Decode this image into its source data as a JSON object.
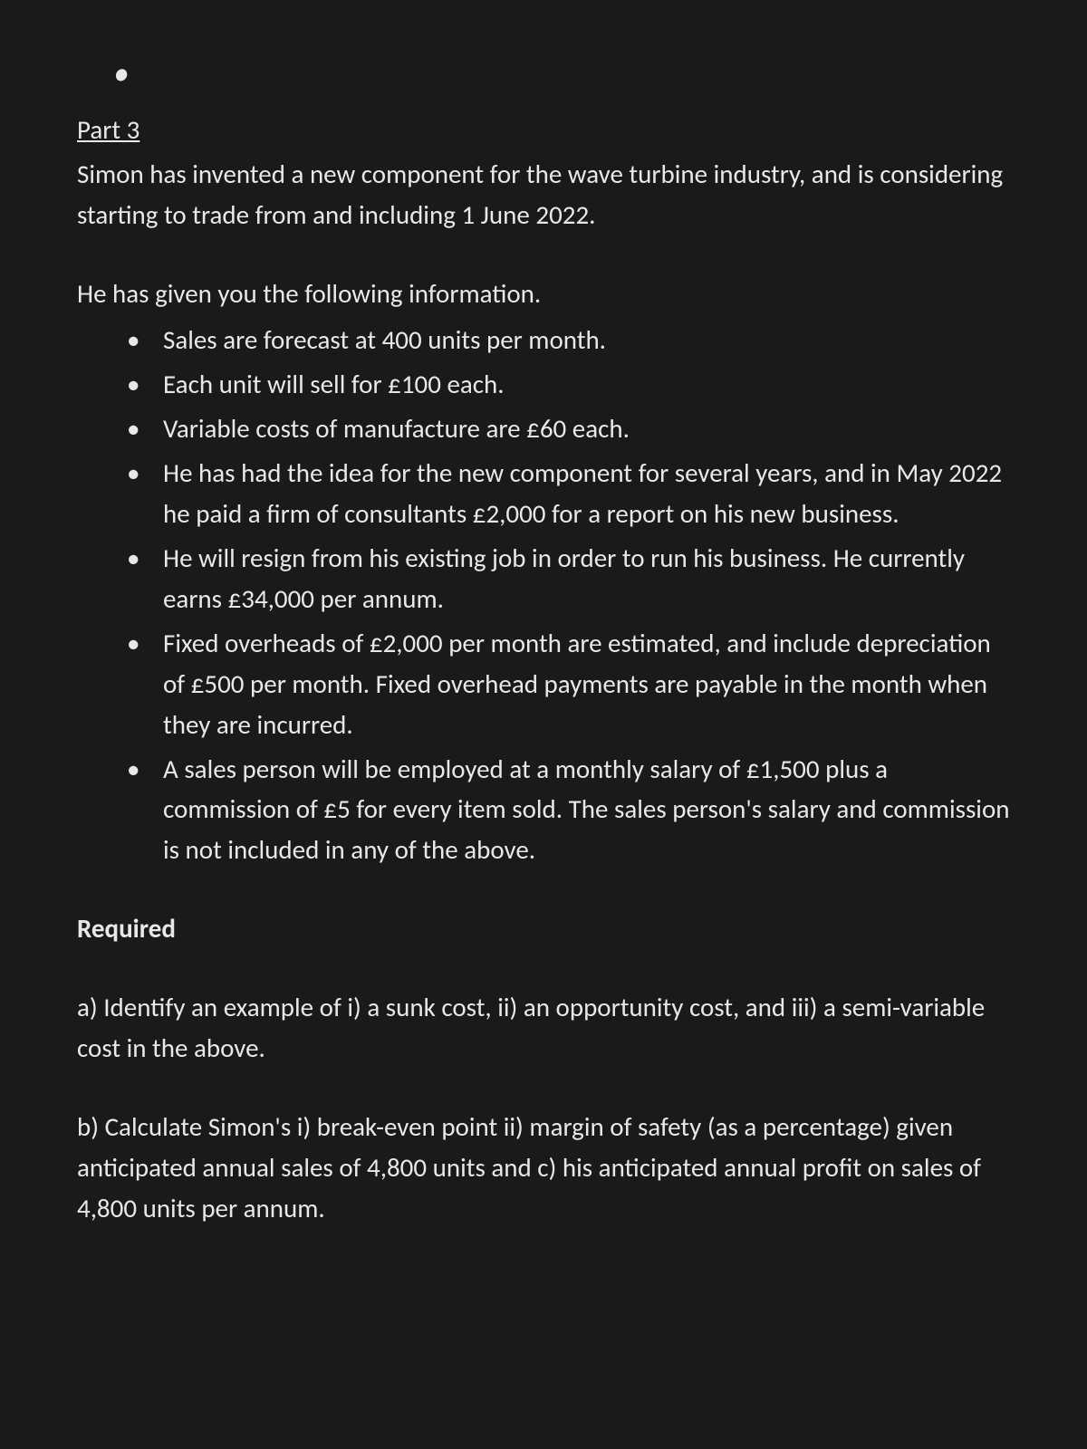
{
  "background_color": "#1a1a1a",
  "text_color": "#e8e8e8",
  "font_family": "Calibri, 'Segoe UI', Arial, sans-serif",
  "font_size_pt": 22,
  "part_title": "Part 3",
  "intro": "Simon has invented a new component for the wave turbine industry, and is considering starting to trade from and including 1 June 2022.",
  "info_lead": "He has given you the following information.",
  "bullets": [
    "Sales are forecast at 400 units per month.",
    "Each unit will sell for £100 each.",
    "Variable costs of manufacture are £60 each.",
    "He has had the idea for the new component for several years, and in May 2022 he paid a firm of consultants £2,000 for a report on his new business.",
    "He will resign from his existing job in order to run his business.  He currently earns £34,000 per annum.",
    "Fixed overheads of £2,000 per month are estimated, and include depreciation of £500 per month.  Fixed overhead payments are payable in the month when they are incurred.",
    "A sales person will be employed at a monthly salary of £1,500 plus a commission of £5 for every item sold.  The sales person's salary and commission is not included in any of the above."
  ],
  "required_label": "Required",
  "question_a": "a) Identify an example of i) a sunk cost, ii) an opportunity cost, and iii) a semi-variable cost in the above.",
  "question_b": "b) Calculate Simon's i) break-even point ii) margin of safety (as a percentage) given anticipated annual sales of 4,800 units and c) his anticipated annual profit on sales of 4,800 units per annum."
}
